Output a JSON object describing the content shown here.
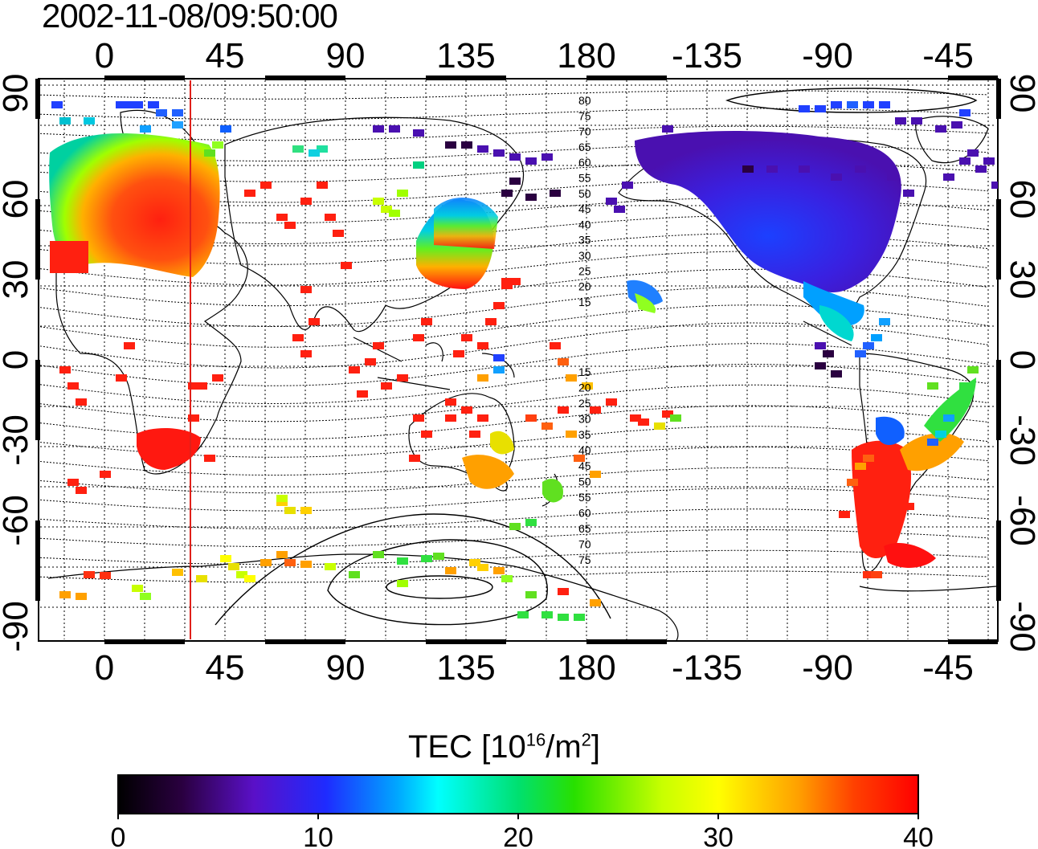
{
  "timestamp": "2002-11-08/09:50:00",
  "map": {
    "top_longitude_ticks": [
      "0",
      "45",
      "90",
      "135",
      "180",
      "-135",
      "-90",
      "-45"
    ],
    "bottom_longitude_ticks": [
      "0",
      "45",
      "90",
      "135",
      "180",
      "-135",
      "-90",
      "-45"
    ],
    "latitude_ticks": [
      "90",
      "60",
      "30",
      "0",
      "-30",
      "-60",
      "-90"
    ],
    "contour_labels_north": [
      "80",
      "75",
      "70",
      "65",
      "60",
      "55",
      "50",
      "45",
      "40",
      "35",
      "30",
      "25",
      "20",
      "15"
    ],
    "contour_labels_south": [
      "15",
      "20",
      "25",
      "30",
      "35",
      "40",
      "45",
      "50",
      "55",
      "60",
      "65",
      "70",
      "75"
    ],
    "colors": {
      "terminator_line": "#e0201a",
      "coastline": "#000000",
      "grid": "#000000"
    }
  },
  "colorbar": {
    "title_prefix": "TEC  [10",
    "title_exp1": "16",
    "title_mid": "/m",
    "title_exp2": "2",
    "title_suffix": "]",
    "tick_labels": [
      "0",
      "10",
      "20",
      "30",
      "40"
    ],
    "range": [
      0,
      40
    ],
    "colormap": [
      "#000000",
      "#3d0069",
      "#5a10c8",
      "#1e2bff",
      "#00a8ff",
      "#00ffff",
      "#00e070",
      "#28e000",
      "#c8ff00",
      "#ffff00",
      "#ffa000",
      "#ff4000",
      "#ff0000"
    ]
  }
}
